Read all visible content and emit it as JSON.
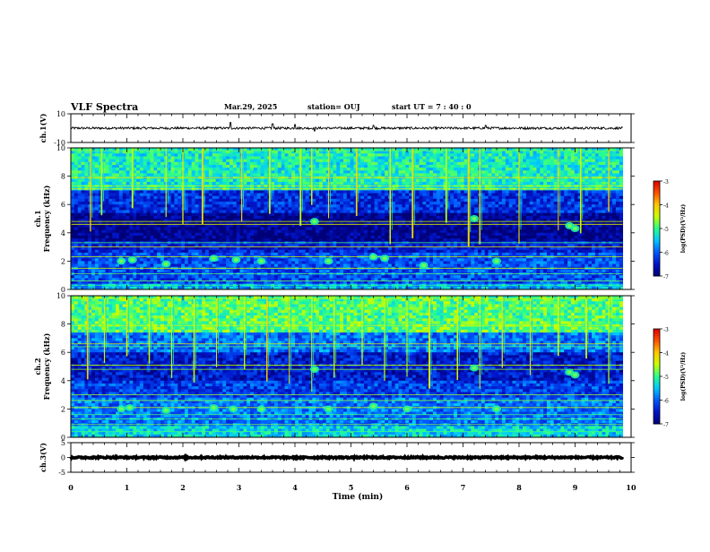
{
  "header": {
    "title": "VLF Spectra",
    "date": "Mar.29, 2025",
    "station": "station= OUJ",
    "start": "start  UT  =   7 : 40 : 0"
  },
  "colors": {
    "low": "#00008c",
    "mid_low": "#0050ff",
    "mid": "#00dcff",
    "mid_high": "#32ff32",
    "high": "#ffff00",
    "top": "#ff0000",
    "axis": "#000000",
    "trace": "#000000"
  },
  "chart_data": [
    {
      "type": "line",
      "id": "ch1-waveform",
      "ylabel": "ch.1(V)",
      "ylim": [
        -10,
        10
      ],
      "yticks": [
        "10",
        "-10"
      ],
      "xlim": [
        0,
        10
      ],
      "baseline_value": 0,
      "noise_amplitude": 0.8,
      "spikes": [
        {
          "t": 2.85,
          "v": 4
        },
        {
          "t": 3.6,
          "v": 3
        },
        {
          "t": 4.0,
          "v": 2.5
        },
        {
          "t": 4.35,
          "v": -2
        },
        {
          "t": 5.4,
          "v": 2
        },
        {
          "t": 7.4,
          "v": 2
        }
      ]
    },
    {
      "type": "heatmap",
      "id": "ch1-spectrogram",
      "ylabel": "Frequency (kHz)",
      "channel_label": "ch.1",
      "ylim": [
        0,
        10
      ],
      "yticks": [
        "0",
        "2",
        "4",
        "6",
        "8",
        "10"
      ],
      "xlim": [
        0,
        9.85
      ],
      "colorbar": {
        "label": "log(PSD)(V²/Hz)",
        "range": [
          -7,
          -3
        ],
        "ticks": [
          "-3",
          "-4",
          "-5",
          "-6",
          "-7"
        ]
      },
      "band_power": [
        {
          "f": [
            0,
            0.5
          ],
          "level": -5.6
        },
        {
          "f": [
            0.5,
            2.6
          ],
          "level": -6.1
        },
        {
          "f": [
            2.6,
            3.4
          ],
          "level": -6.4
        },
        {
          "f": [
            3.4,
            5.5
          ],
          "level": -6.9
        },
        {
          "f": [
            5.5,
            7.0
          ],
          "level": -6.3
        },
        {
          "f": [
            7.0,
            10
          ],
          "level": -5.2
        }
      ],
      "horizontal_lines_khz": [
        0.3,
        0.6,
        1.1,
        1.5,
        2.3,
        3.0,
        3.3,
        4.6,
        4.8,
        7.1,
        7.3,
        7.9,
        9.8
      ],
      "vlf_bursts_min": [
        0.35,
        0.55,
        1.1,
        1.7,
        2.0,
        2.35,
        3.05,
        3.55,
        4.1,
        4.3,
        4.6,
        5.1,
        5.7,
        6.1,
        6.7,
        7.1,
        7.3,
        8.0,
        8.7,
        9.1,
        9.6
      ],
      "emission_patches": [
        {
          "t": 0.9,
          "f": 2.0
        },
        {
          "t": 1.1,
          "f": 2.1
        },
        {
          "t": 1.7,
          "f": 1.8
        },
        {
          "t": 2.55,
          "f": 2.2
        },
        {
          "t": 2.95,
          "f": 2.1
        },
        {
          "t": 3.4,
          "f": 2.0
        },
        {
          "t": 4.35,
          "f": 4.8
        },
        {
          "t": 4.6,
          "f": 2.0
        },
        {
          "t": 5.4,
          "f": 2.3
        },
        {
          "t": 5.6,
          "f": 2.2
        },
        {
          "t": 6.3,
          "f": 1.7
        },
        {
          "t": 7.2,
          "f": 5.0
        },
        {
          "t": 7.6,
          "f": 2.0
        },
        {
          "t": 8.9,
          "f": 4.5
        },
        {
          "t": 9.0,
          "f": 4.3
        }
      ]
    },
    {
      "type": "heatmap",
      "id": "ch2-spectrogram",
      "ylabel": "Frequency (kHz)",
      "channel_label": "ch.2",
      "ylim": [
        0,
        10
      ],
      "yticks": [
        "0",
        "2",
        "4",
        "6",
        "8",
        "10"
      ],
      "xlim": [
        0,
        9.85
      ],
      "colorbar": {
        "label": "log(PSD)(V²/Hz)",
        "range": [
          -7,
          -3
        ],
        "ticks": [
          "-3",
          "-4",
          "-5",
          "-6",
          "-7"
        ]
      },
      "band_power": [
        {
          "f": [
            0,
            0.8
          ],
          "level": -5.4
        },
        {
          "f": [
            0.8,
            2.8
          ],
          "level": -5.9
        },
        {
          "f": [
            2.8,
            4.0
          ],
          "level": -6.2
        },
        {
          "f": [
            4.0,
            6.0
          ],
          "level": -6.5
        },
        {
          "f": [
            6.0,
            7.5
          ],
          "level": -5.9
        },
        {
          "f": [
            7.5,
            10
          ],
          "level": -4.9
        }
      ],
      "horizontal_lines_khz": [
        0.4,
        0.9,
        1.3,
        1.6,
        2.1,
        2.6,
        3.0,
        4.8,
        5.1,
        6.4,
        6.6,
        7.9,
        9.8
      ],
      "vlf_bursts_min": [
        0.3,
        0.6,
        1.0,
        1.4,
        1.8,
        2.2,
        2.6,
        3.1,
        3.5,
        3.9,
        4.3,
        4.7,
        5.2,
        5.6,
        6.0,
        6.4,
        6.9,
        7.3,
        7.7,
        8.2,
        8.7,
        9.2,
        9.6
      ],
      "emission_patches": [
        {
          "t": 0.9,
          "f": 2.0
        },
        {
          "t": 1.05,
          "f": 2.1
        },
        {
          "t": 1.7,
          "f": 1.9
        },
        {
          "t": 2.55,
          "f": 2.1
        },
        {
          "t": 2.9,
          "f": 2.0
        },
        {
          "t": 3.4,
          "f": 2.0
        },
        {
          "t": 4.35,
          "f": 4.8
        },
        {
          "t": 4.6,
          "f": 2.0
        },
        {
          "t": 5.4,
          "f": 2.2
        },
        {
          "t": 6.0,
          "f": 2.0
        },
        {
          "t": 7.2,
          "f": 4.9
        },
        {
          "t": 7.6,
          "f": 2.0
        },
        {
          "t": 8.9,
          "f": 4.6
        },
        {
          "t": 9.0,
          "f": 4.4
        }
      ]
    },
    {
      "type": "line",
      "id": "ch3-waveform",
      "ylabel": "ch.3(V)",
      "ylim": [
        -5,
        5
      ],
      "yticks": [
        "5",
        "0",
        "-5"
      ],
      "xlim": [
        0,
        10
      ],
      "baseline_value": 0,
      "noise_amplitude": 0.25
    }
  ],
  "x_axis": {
    "label": "Time (min)",
    "ticks": [
      "0",
      "1",
      "2",
      "3",
      "4",
      "5",
      "6",
      "7",
      "8",
      "9",
      "10"
    ],
    "range": [
      0,
      10
    ]
  }
}
